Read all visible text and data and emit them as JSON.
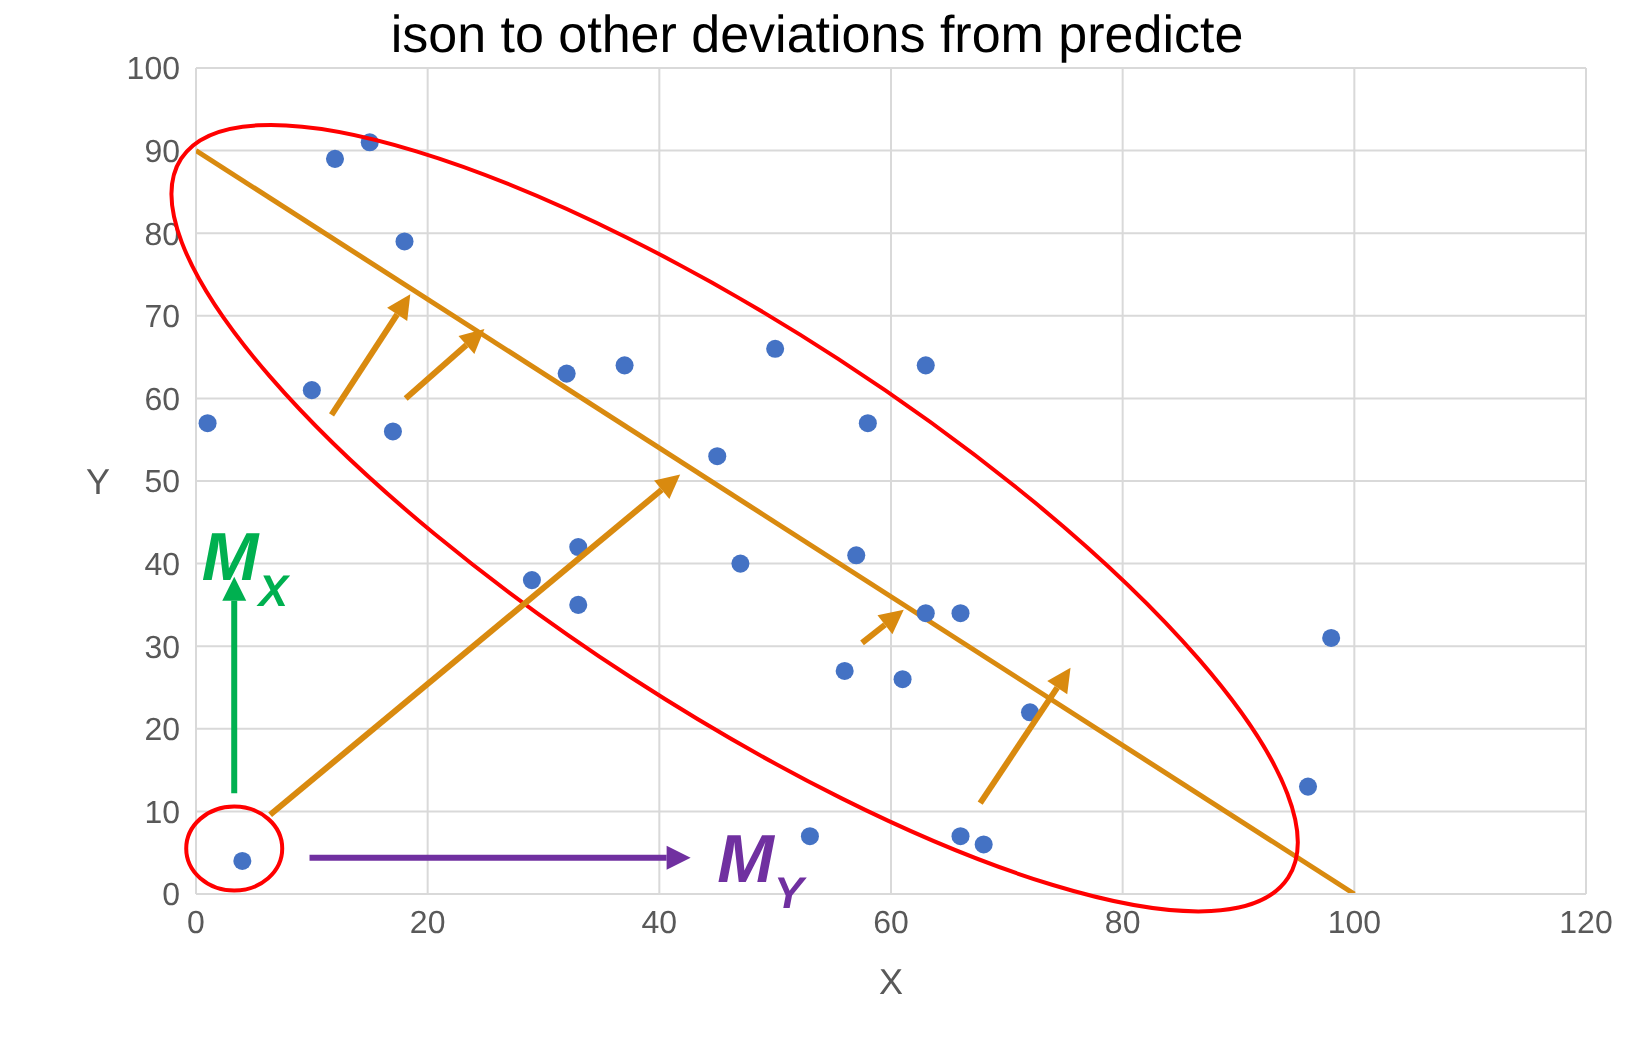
{
  "chart_data": {
    "type": "scatter",
    "title": "ison to other deviations from predicte",
    "xlabel": "X",
    "ylabel": "Y",
    "xlim": [
      0,
      120
    ],
    "xticks": [
      0,
      20,
      40,
      60,
      80,
      100,
      120
    ],
    "ylim": [
      0,
      100
    ],
    "yticks": [
      0,
      10,
      20,
      30,
      40,
      50,
      60,
      70,
      80,
      90,
      100
    ],
    "grid": true,
    "series": [
      {
        "marker": "circle",
        "color": "#4472c4",
        "x": [
          4,
          12,
          15,
          18,
          10,
          17,
          1,
          29,
          33,
          33,
          32,
          37,
          45,
          47,
          50,
          58,
          57,
          56,
          53,
          63,
          63,
          66,
          61,
          72,
          66,
          68,
          96,
          98
        ],
        "values": [
          4,
          89,
          91,
          79,
          61,
          56,
          57,
          38,
          42,
          35,
          63,
          64,
          53,
          40,
          66,
          57,
          41,
          27,
          7,
          64,
          34,
          34,
          26,
          22,
          7,
          6,
          13,
          31
        ]
      },
      {
        "type": "line",
        "color": "#d98a0f",
        "x": [
          0,
          100
        ],
        "values": [
          90,
          0
        ]
      }
    ],
    "annotations": [
      "M$_{X}$",
      "M$_{Y}$"
    ]
  }
}
